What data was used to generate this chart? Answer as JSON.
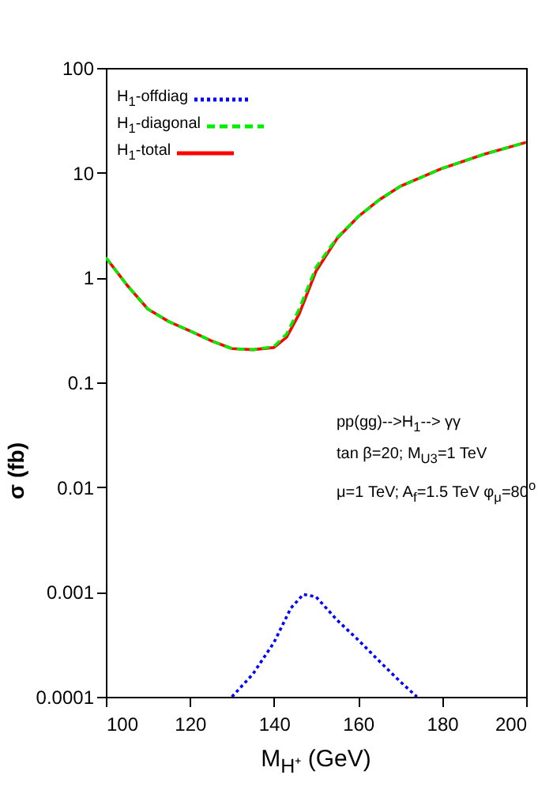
{
  "chart_data": {
    "type": "line",
    "xlabel": "M$_{H⁺}$ (GeV)",
    "ylabel": "σ (fb)",
    "log": "y",
    "xlim": [
      100,
      200
    ],
    "xticks": [
      100,
      120,
      140,
      160,
      180,
      200
    ],
    "ylim": [
      0.0001,
      100
    ],
    "yticks": [
      0.0001,
      0.001,
      0.01,
      0.1,
      1,
      10,
      100
    ],
    "grid": false,
    "legend": "top left",
    "annotations": [
      "pp(gg)-->H$_{1}$--> γγ",
      "tan β=20;  M$_{U3}$=1 TeV",
      "μ=1 TeV;  A$_{f}$=1.5 TeV   φ$_{μ}$=80$^{o}$"
    ],
    "series": [
      {
        "name": "H$_{1}$-offdiag",
        "color": "#0000ff",
        "line_style": "dotted",
        "x": [
          130,
          135,
          140,
          144,
          147,
          150,
          155,
          160,
          165,
          170,
          174
        ],
        "values": [
          0.0001,
          0.000165,
          0.00033,
          0.0007,
          0.00095,
          0.0009,
          0.00054,
          0.00035,
          0.00022,
          0.00014,
          0.0001
        ]
      },
      {
        "name": "H$_{1}$-diagonal",
        "color": "#00ee00",
        "line_style": "dashed",
        "x": [
          100,
          105,
          110,
          115,
          120,
          125,
          130,
          135,
          140,
          143,
          146,
          150,
          155,
          160,
          165,
          170,
          180,
          190,
          200
        ],
        "values": [
          1.55,
          0.85,
          0.5,
          0.38,
          0.31,
          0.25,
          0.21,
          0.205,
          0.22,
          0.29,
          0.5,
          1.25,
          2.4,
          3.8,
          5.5,
          7.4,
          11,
          15,
          19.5
        ]
      },
      {
        "name": "H$_{1}$-total",
        "color": "#ff0000",
        "line_style": "solid",
        "x": [
          100,
          105,
          110,
          115,
          120,
          125,
          130,
          135,
          140,
          143,
          146,
          150,
          155,
          160,
          165,
          170,
          180,
          190,
          200
        ],
        "values": [
          1.55,
          0.85,
          0.5,
          0.38,
          0.31,
          0.25,
          0.21,
          0.205,
          0.215,
          0.27,
          0.45,
          1.15,
          2.35,
          3.8,
          5.5,
          7.4,
          11,
          15,
          19.5
        ]
      }
    ]
  }
}
